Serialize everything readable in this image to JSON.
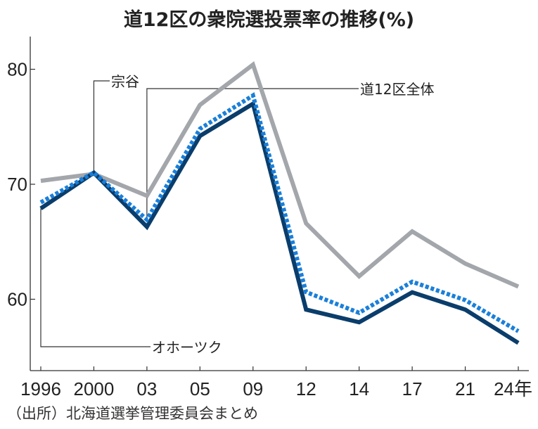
{
  "title": "道12区の衆院選投票率の推移(%)",
  "source": "（出所）北海道選挙管理委員会まとめ",
  "chart_data": {
    "type": "line",
    "title": "道12区の衆院選投票率の推移(%)",
    "xlabel": "",
    "ylabel": "",
    "x": [
      "1996",
      "2000",
      "03",
      "05",
      "09",
      "12",
      "14",
      "17",
      "21",
      "24年"
    ],
    "yticks": [
      60,
      70,
      80
    ],
    "ylim": [
      53.7,
      82.6
    ],
    "grid": false,
    "legend": "inline annotations",
    "series": [
      {
        "name": "宗谷",
        "color": "#a3a6aa",
        "style": "solid",
        "values": [
          70.3,
          70.9,
          69.0,
          76.9,
          80.4,
          66.6,
          62.0,
          65.9,
          63.1,
          61.1
        ]
      },
      {
        "name": "道12区全体",
        "color": "#1a7fd9",
        "style": "dotted",
        "values": [
          68.3,
          70.9,
          66.8,
          74.7,
          77.6,
          60.5,
          58.7,
          61.4,
          59.8,
          57.1
        ]
      },
      {
        "name": "オホーツク",
        "color": "#0a3d6b",
        "style": "solid",
        "values": [
          67.9,
          71.0,
          66.3,
          74.2,
          77.0,
          59.1,
          58.0,
          60.6,
          59.1,
          56.2
        ]
      }
    ],
    "annotations": [
      {
        "text": "宗谷",
        "series": "宗谷",
        "point_index": 1
      },
      {
        "text": "道12区全体",
        "series": "道12区全体",
        "point_index": 2
      },
      {
        "text": "オホーツク",
        "series": "オホーツク",
        "point_index": 0
      }
    ]
  }
}
